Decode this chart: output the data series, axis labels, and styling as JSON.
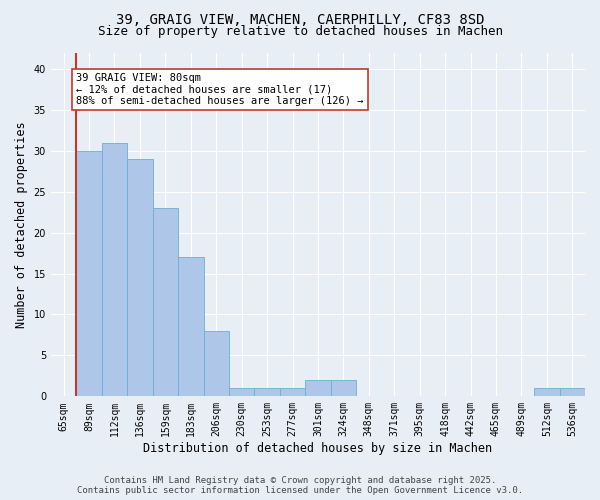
{
  "title1": "39, GRAIG VIEW, MACHEN, CAERPHILLY, CF83 8SD",
  "title2": "Size of property relative to detached houses in Machen",
  "xlabel": "Distribution of detached houses by size in Machen",
  "ylabel": "Number of detached properties",
  "categories": [
    "65sqm",
    "89sqm",
    "112sqm",
    "136sqm",
    "159sqm",
    "183sqm",
    "206sqm",
    "230sqm",
    "253sqm",
    "277sqm",
    "301sqm",
    "324sqm",
    "348sqm",
    "371sqm",
    "395sqm",
    "418sqm",
    "442sqm",
    "465sqm",
    "489sqm",
    "512sqm",
    "536sqm"
  ],
  "values": [
    0,
    30,
    31,
    29,
    23,
    17,
    8,
    1,
    1,
    1,
    2,
    2,
    0,
    0,
    0,
    0,
    0,
    0,
    0,
    1,
    1
  ],
  "bar_color": "#aec6e8",
  "bar_edgecolor": "#6baed6",
  "vline_color": "#c0392b",
  "vline_x_index": 1,
  "annotation_text_line1": "39 GRAIG VIEW: 80sqm",
  "annotation_text_line2": "← 12% of detached houses are smaller (17)",
  "annotation_text_line3": "88% of semi-detached houses are larger (126) →",
  "annotation_box_facecolor": "#ffffff",
  "annotation_box_edgecolor": "#c0392b",
  "ylim": [
    0,
    42
  ],
  "yticks": [
    0,
    5,
    10,
    15,
    20,
    25,
    30,
    35,
    40
  ],
  "footer1": "Contains HM Land Registry data © Crown copyright and database right 2025.",
  "footer2": "Contains public sector information licensed under the Open Government Licence v3.0.",
  "background_color": "#e8eef6",
  "plot_bg_color": "#e8eef6",
  "grid_color": "#ffffff",
  "title_fontsize": 10,
  "subtitle_fontsize": 9,
  "axis_label_fontsize": 8.5,
  "tick_fontsize": 7,
  "annotation_fontsize": 7.5,
  "footer_fontsize": 6.5
}
